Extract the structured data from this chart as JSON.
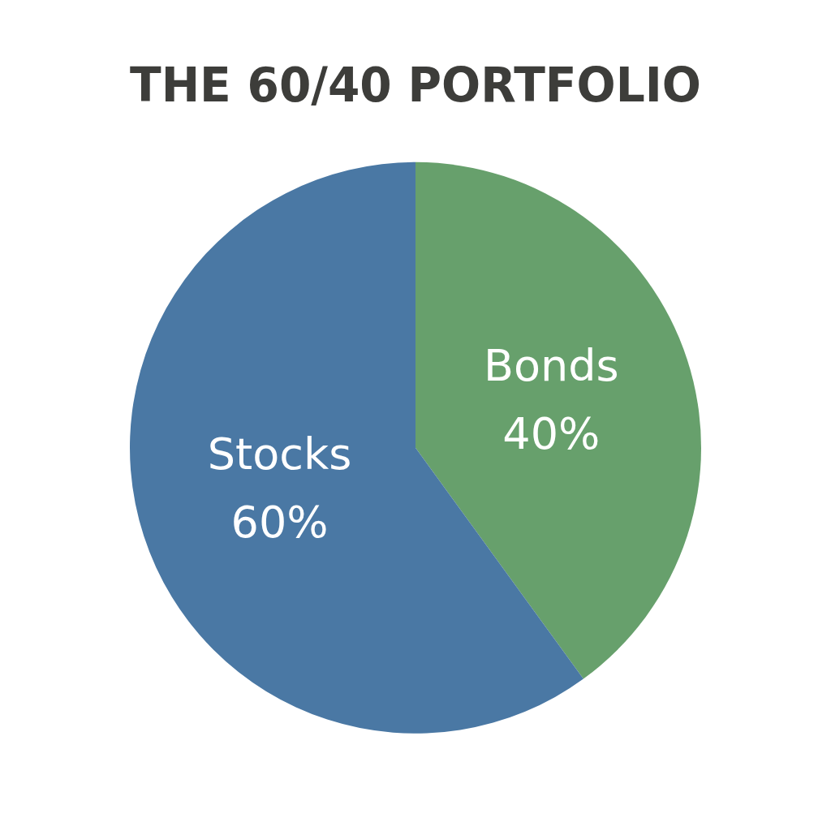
{
  "chart_data": {
    "type": "pie",
    "title": "THE 60/40 PORTFOLIO",
    "categories": [
      "Bonds",
      "Stocks"
    ],
    "values": [
      40,
      60
    ],
    "value_labels": [
      "40%",
      "60%"
    ],
    "colors": [
      "#67a06c",
      "#4a78a4"
    ],
    "legend": false
  }
}
